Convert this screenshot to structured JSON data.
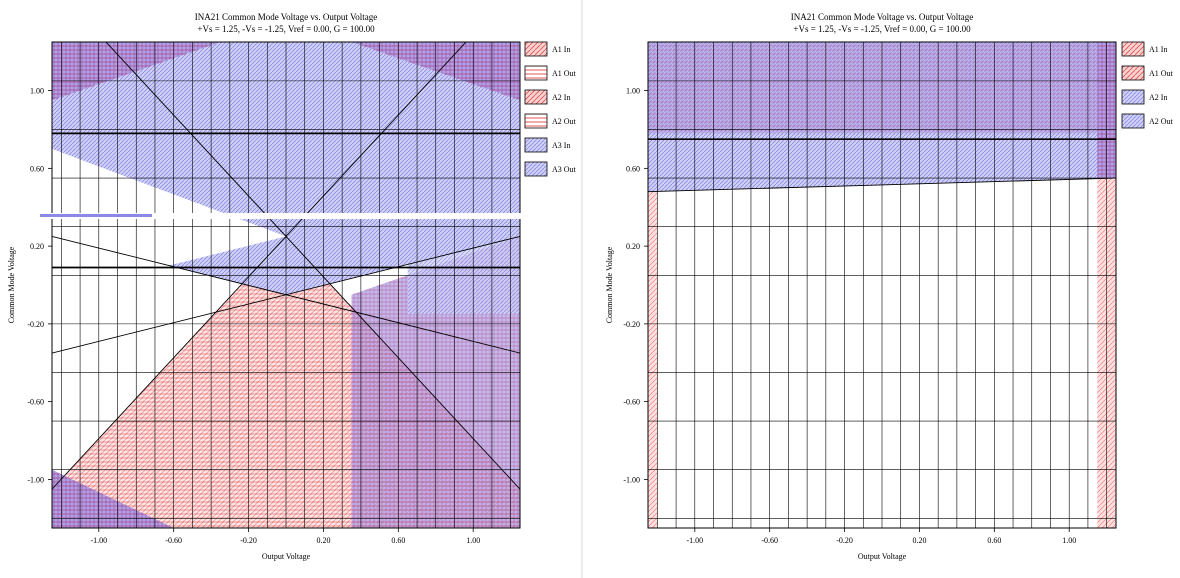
{
  "chart_data": [
    {
      "type": "area",
      "title": "INA21 Common Mode Voltage vs. Output Voltage",
      "subtitle": "+Vs = 1.25, -Vs = -1.25, Vref = 0.00, G = 100.00",
      "xlabel": "Output Voltage",
      "ylabel": "Common Mode Voltage",
      "xlim": [
        -1.25,
        1.25
      ],
      "ylim": [
        -1.25,
        1.25
      ],
      "xticks": [
        -1.0,
        -0.6,
        -0.2,
        0.2,
        0.6,
        1.0
      ],
      "xtick_labels": [
        "-1.00",
        "-0.60",
        "-0.20",
        "0.20",
        "0.60",
        "1.00"
      ],
      "yticks": [
        -1.0,
        -0.6,
        -0.2,
        0.2,
        0.6,
        1.0
      ],
      "ytick_labels": [
        "-1.00",
        "-0.60",
        "-0.20",
        "0.20",
        "0.60",
        "1.00"
      ],
      "legend_position": "right",
      "legend": [
        {
          "label": "A1 In",
          "color": "#e03030",
          "pattern": "diag"
        },
        {
          "label": "A1 Out",
          "color": "#e03030",
          "pattern": "horiz"
        },
        {
          "label": "A2 In",
          "color": "#e03030",
          "pattern": "diag"
        },
        {
          "label": "A2 Out",
          "color": "#e03030",
          "pattern": "horiz"
        },
        {
          "label": "A3 In",
          "color": "#4040e0",
          "pattern": "solid"
        },
        {
          "label": "A3 Out",
          "color": "#4040e0",
          "pattern": "solid"
        }
      ],
      "lines": [
        {
          "name": "A1 boundary rising",
          "x": [
            -1.25,
            1.25
          ],
          "y": [
            -1.05,
            1.55
          ]
        },
        {
          "name": "A2 boundary falling",
          "x": [
            -1.25,
            1.25
          ],
          "y": [
            1.55,
            -1.05
          ]
        },
        {
          "name": "A3 boundary falling",
          "x": [
            -1.25,
            1.25
          ],
          "y": [
            0.25,
            -0.35
          ]
        },
        {
          "name": "A3 boundary rising",
          "x": [
            -1.25,
            1.25
          ],
          "y": [
            -0.35,
            0.25
          ]
        }
      ],
      "hlines": [
        0.78,
        0.09
      ]
    },
    {
      "type": "area",
      "title": "INA21 Common Mode Voltage vs. Output Voltage",
      "subtitle": "+Vs = 1.25, -Vs = -1.25, Vref = 0.00, G = 100.00",
      "xlabel": "Output Voltage",
      "ylabel": "Common Mode Voltage",
      "xlim": [
        -1.25,
        1.25
      ],
      "ylim": [
        -1.25,
        1.25
      ],
      "xticks": [
        -1.0,
        -0.6,
        -0.2,
        0.2,
        0.6,
        1.0
      ],
      "xtick_labels": [
        "-1.00",
        "-0.60",
        "-0.20",
        "0.20",
        "0.60",
        "1.00"
      ],
      "yticks": [
        -1.0,
        -0.6,
        -0.2,
        0.2,
        0.6,
        1.0
      ],
      "ytick_labels": [
        "-1.00",
        "-0.60",
        "-0.20",
        "0.20",
        "0.60",
        "1.00"
      ],
      "legend_position": "right",
      "legend": [
        {
          "label": "A1 In",
          "color": "#e03030",
          "pattern": "diag"
        },
        {
          "label": "A1 Out",
          "color": "#e03030",
          "pattern": "diag"
        },
        {
          "label": "A2 In",
          "color": "#4040e0",
          "pattern": "horiz"
        },
        {
          "label": "A2 Out",
          "color": "#4040e0",
          "pattern": "solid"
        }
      ],
      "regions": [
        {
          "name": "blue band",
          "x": [
            -1.25,
            1.25
          ],
          "y_low": [
            0.48,
            0.55
          ],
          "y_high": [
            1.25,
            1.25
          ]
        },
        {
          "name": "left red strip",
          "x": [
            -1.25,
            -1.2
          ],
          "y": [
            -1.25,
            0.48
          ]
        },
        {
          "name": "right red strip",
          "x": [
            1.15,
            1.25
          ],
          "y": [
            -1.25,
            0.55
          ]
        }
      ],
      "hlines": [
        0.75
      ]
    }
  ]
}
